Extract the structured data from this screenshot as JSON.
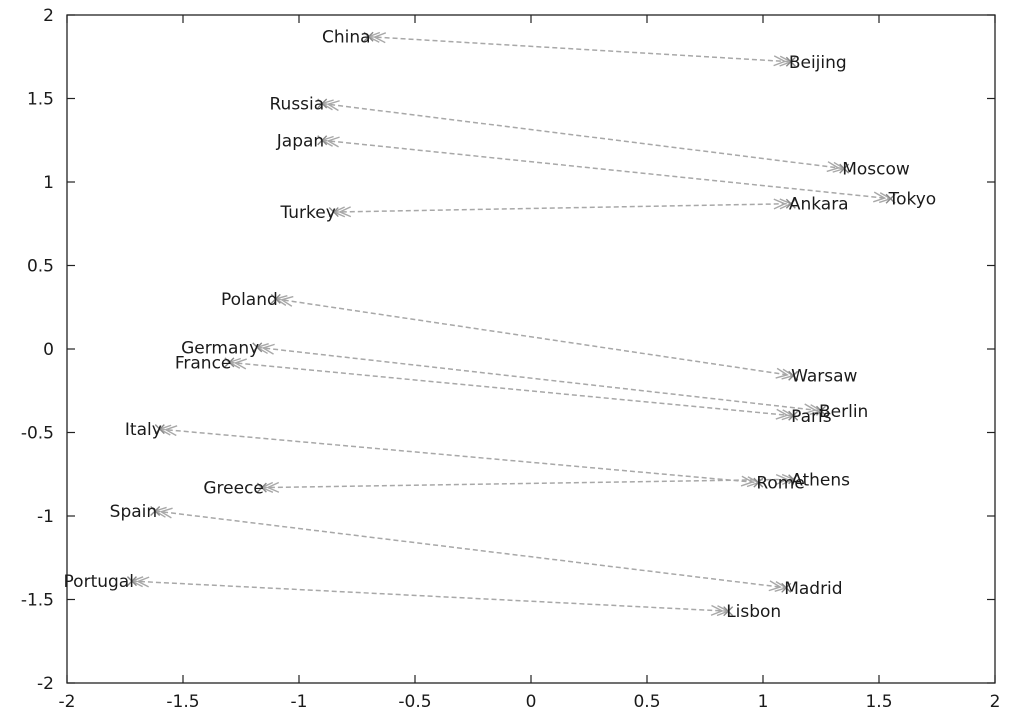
{
  "chart_data": {
    "type": "scatter",
    "xlim": [
      -2,
      2
    ],
    "ylim": [
      -2,
      2
    ],
    "grid": false,
    "xticks": [
      -2,
      -1.5,
      -1,
      -0.5,
      0,
      0.5,
      1,
      1.5,
      2
    ],
    "yticks": [
      -2,
      -1.5,
      -1,
      -0.5,
      0,
      0.5,
      1,
      1.5,
      2
    ],
    "xtick_labels": [
      "-2",
      "-1.5",
      "-1",
      "-0.5",
      "0",
      "0.5",
      "1",
      "1.5",
      "2"
    ],
    "ytick_labels": [
      "-2",
      "-1.5",
      "-1",
      "-0.5",
      "0",
      "0.5",
      "1",
      "1.5",
      "2"
    ],
    "pairs": [
      {
        "country": "China",
        "country_xy": [
          -0.7,
          1.87
        ],
        "capital": "Beijing",
        "capital_xy": [
          1.12,
          1.72
        ]
      },
      {
        "country": "Russia",
        "country_xy": [
          -0.9,
          1.47
        ],
        "capital": "Moscow",
        "capital_xy": [
          1.35,
          1.08
        ]
      },
      {
        "country": "Japan",
        "country_xy": [
          -0.9,
          1.25
        ],
        "capital": "Tokyo",
        "capital_xy": [
          1.55,
          0.9
        ]
      },
      {
        "country": "Turkey",
        "country_xy": [
          -0.85,
          0.82
        ],
        "capital": "Ankara",
        "capital_xy": [
          1.12,
          0.87
        ]
      },
      {
        "country": "Poland",
        "country_xy": [
          -1.1,
          0.3
        ],
        "capital": "Warsaw",
        "capital_xy": [
          1.13,
          -0.16
        ]
      },
      {
        "country": "Germany",
        "country_xy": [
          -1.18,
          0.01
        ],
        "capital": "Berlin",
        "capital_xy": [
          1.25,
          -0.37
        ]
      },
      {
        "country": "France",
        "country_xy": [
          -1.3,
          -0.08
        ],
        "capital": "Paris",
        "capital_xy": [
          1.13,
          -0.4
        ]
      },
      {
        "country": "Italy",
        "country_xy": [
          -1.6,
          -0.48
        ],
        "capital": "Rome",
        "capital_xy": [
          0.98,
          -0.8
        ]
      },
      {
        "country": "Greece",
        "country_xy": [
          -1.16,
          -0.83
        ],
        "capital": "Athens",
        "capital_xy": [
          1.13,
          -0.78
        ]
      },
      {
        "country": "Spain",
        "country_xy": [
          -1.62,
          -0.97
        ],
        "capital": "Madrid",
        "capital_xy": [
          1.1,
          -1.43
        ]
      },
      {
        "country": "Portugal",
        "country_xy": [
          -1.72,
          -1.39
        ],
        "capital": "Lisbon",
        "capital_xy": [
          0.85,
          -1.57
        ]
      }
    ]
  }
}
